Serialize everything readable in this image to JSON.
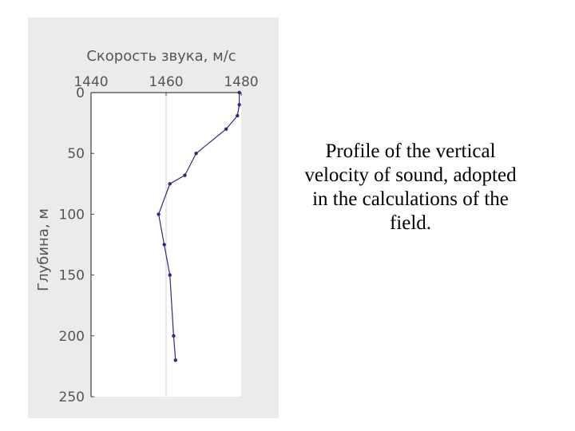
{
  "caption": "Profile of the vertical velocity of sound, adopted in the calculations of the field.",
  "chart_data": {
    "type": "line",
    "title": "Скорость звука, м/с",
    "xlabel": "Скорость звука, м/с",
    "ylabel": "Глубина, м",
    "xlim": [
      1440,
      1480
    ],
    "ylim": [
      0,
      250
    ],
    "x_ticks": [
      1440,
      1460,
      1480
    ],
    "y_ticks": [
      0,
      50,
      100,
      150,
      200,
      250
    ],
    "x_axis_position": "top",
    "y_inverted": true,
    "grid": "vertical",
    "series": [
      {
        "points": [
          {
            "x": 1479.5,
            "y": 0
          },
          {
            "x": 1479.5,
            "y": 10
          },
          {
            "x": 1479,
            "y": 19
          },
          {
            "x": 1476,
            "y": 30
          },
          {
            "x": 1468,
            "y": 50
          },
          {
            "x": 1465,
            "y": 68
          },
          {
            "x": 1461,
            "y": 75
          },
          {
            "x": 1458,
            "y": 100
          },
          {
            "x": 1459.5,
            "y": 125
          },
          {
            "x": 1461,
            "y": 150
          },
          {
            "x": 1462,
            "y": 200
          },
          {
            "x": 1462.5,
            "y": 220
          }
        ],
        "color": "#2b2b80"
      }
    ]
  }
}
